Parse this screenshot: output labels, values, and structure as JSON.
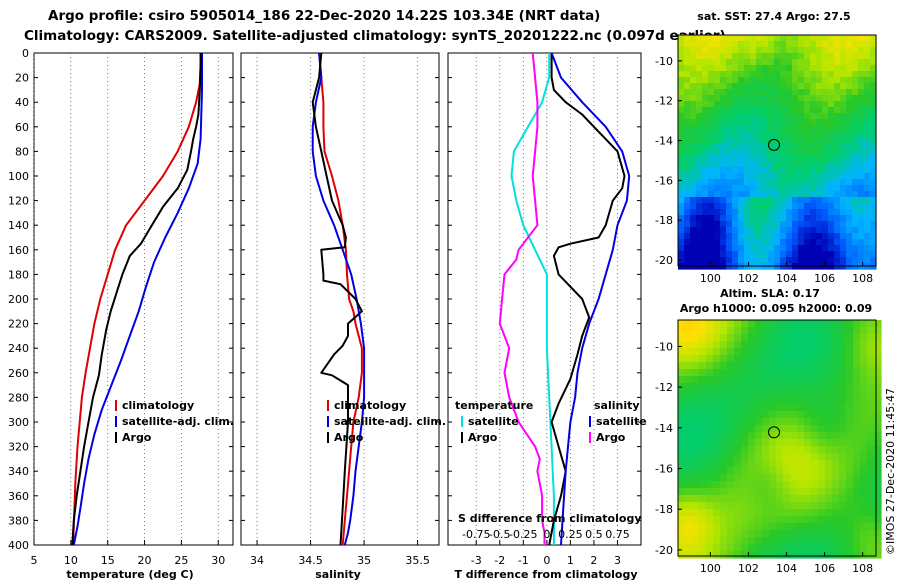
{
  "header": {
    "line1": "Argo profile: csiro 5905014_186 22-Dec-2020 14.22S 103.34E (NRT data)",
    "line2": "Climatology: CARS2009. Satellite-adjusted climatology: synTS_20201222.nc (0.097d earlier)"
  },
  "colors": {
    "climatology": "#e00000",
    "satellite": "#0000e6",
    "argo": "#000000",
    "temp_diff": "#00e0e0",
    "sal_diff": "#ff00ff"
  },
  "side": {
    "sst_title": "sat. SST: 27.4 Argo: 27.5",
    "sla_title1": "Altim. SLA: 0.17",
    "sla_title2": "Argo h1000: 0.095 h2000: 0.09",
    "map_xticks": [
      "100",
      "102",
      "104",
      "106",
      "108"
    ],
    "map_yticks": [
      "-10",
      "-12",
      "-14",
      "-16",
      "-18",
      "-20"
    ],
    "map_xvals": [
      100,
      102,
      104,
      106,
      108
    ],
    "map_yvals": [
      -10,
      -12,
      -14,
      -16,
      -18,
      -20
    ],
    "float_lon": 103.34,
    "float_lat": -14.22,
    "credit": "©IMOS 27-Dec-2020 11:45:47"
  },
  "chart_data": [
    {
      "type": "line",
      "id": "temperature",
      "xlabel": "temperature (deg C)",
      "ylabel": "depth",
      "xlim": [
        5,
        32
      ],
      "ylim": [
        0,
        400
      ],
      "xticks": [
        5,
        10,
        15,
        20,
        25,
        30
      ],
      "xtick_labels": [
        "5",
        "10",
        "15",
        "20",
        "25",
        "30"
      ],
      "yticks": [
        0,
        20,
        40,
        60,
        80,
        100,
        120,
        140,
        160,
        180,
        200,
        220,
        240,
        260,
        280,
        300,
        320,
        340,
        360,
        380,
        400
      ],
      "ytick_labels": [
        "0",
        "20",
        "40",
        "60",
        "80",
        "100",
        "120",
        "140",
        "160",
        "180",
        "200",
        "220",
        "240",
        "260",
        "280",
        "300",
        "320",
        "340",
        "360",
        "380",
        "400"
      ],
      "legend": {
        "position": "lower-right",
        "entries": [
          "climatology",
          "satellite-adj. clim.",
          "Argo"
        ]
      },
      "series": [
        {
          "name": "climatology",
          "color": "#e00000",
          "x": [
            27.6,
            27.6,
            27.5,
            27.0,
            26.0,
            24.5,
            22.5,
            20.0,
            17.5,
            16.0,
            15.0,
            14.0,
            13.2,
            12.6,
            12.0,
            11.5,
            11.2,
            10.9,
            10.6,
            10.3
          ],
          "y": [
            0,
            10,
            25,
            40,
            60,
            80,
            100,
            120,
            140,
            160,
            180,
            200,
            220,
            240,
            260,
            280,
            300,
            320,
            350,
            400
          ]
        },
        {
          "name": "satellite",
          "color": "#0000e6",
          "x": [
            27.8,
            27.8,
            27.8,
            27.7,
            27.6,
            27.2,
            26.0,
            24.5,
            22.8,
            21.3,
            20.2,
            19.2,
            18.0,
            16.8,
            15.5,
            14.2,
            13.2,
            12.4,
            11.8,
            11.3,
            10.9,
            10.4
          ],
          "y": [
            0,
            10,
            30,
            50,
            70,
            90,
            110,
            130,
            150,
            170,
            190,
            210,
            230,
            250,
            270,
            290,
            310,
            330,
            350,
            370,
            385,
            400
          ]
        },
        {
          "name": "Argo",
          "color": "#000000",
          "x": [
            27.6,
            27.6,
            27.5,
            27.3,
            27.0,
            26.6,
            26.3,
            25.8,
            24.5,
            22.5,
            21.0,
            19.5,
            18.0,
            17.0,
            16.2,
            15.4,
            14.8,
            14.2,
            13.8,
            13.0,
            12.4,
            11.8,
            11.3,
            10.8,
            10.4,
            10.2
          ],
          "y": [
            0,
            10,
            30,
            50,
            60,
            70,
            80,
            95,
            110,
            125,
            140,
            155,
            165,
            180,
            195,
            210,
            225,
            245,
            262,
            280,
            300,
            320,
            340,
            360,
            380,
            400
          ]
        }
      ]
    },
    {
      "type": "line",
      "id": "salinity",
      "xlabel": "salinity",
      "ylabel": "depth",
      "xlim": [
        33.85,
        35.7
      ],
      "ylim": [
        0,
        400
      ],
      "xticks": [
        34,
        34.5,
        35,
        35.5
      ],
      "xtick_labels": [
        "34",
        "34.5",
        "35",
        "35.5"
      ],
      "legend": {
        "position": "lower-right",
        "entries": [
          "climatology",
          "satellite-adj. clim.",
          "Argo"
        ]
      },
      "series": [
        {
          "name": "climatology",
          "color": "#e00000",
          "x": [
            34.58,
            34.6,
            34.62,
            34.62,
            34.63,
            34.7,
            34.76,
            34.8,
            34.83,
            34.84,
            34.86,
            34.9,
            34.92,
            34.98,
            34.98,
            34.95,
            34.9,
            34.88,
            34.86,
            34.84,
            34.82,
            34.8
          ],
          "y": [
            0,
            20,
            40,
            60,
            80,
            100,
            120,
            140,
            160,
            180,
            200,
            210,
            220,
            240,
            260,
            280,
            300,
            320,
            340,
            360,
            380,
            400
          ]
        },
        {
          "name": "satellite",
          "color": "#0000e6",
          "x": [
            34.58,
            34.6,
            34.55,
            34.52,
            34.52,
            34.55,
            34.62,
            34.72,
            34.8,
            34.88,
            34.93,
            34.97,
            35.0,
            35.0,
            35.0,
            34.98,
            34.95,
            34.92,
            34.9,
            34.87,
            34.85,
            34.82
          ],
          "y": [
            0,
            20,
            40,
            60,
            80,
            100,
            120,
            140,
            160,
            180,
            200,
            220,
            240,
            260,
            280,
            300,
            320,
            340,
            360,
            380,
            390,
            400
          ]
        },
        {
          "name": "Argo",
          "color": "#000000",
          "x": [
            34.6,
            34.58,
            34.52,
            34.55,
            34.6,
            34.65,
            34.7,
            34.75,
            34.8,
            34.83,
            34.82,
            34.6,
            34.62,
            34.62,
            34.78,
            34.92,
            34.98,
            34.85,
            34.85,
            34.8,
            34.72,
            34.6,
            34.7,
            34.85,
            34.85,
            34.82,
            34.8,
            34.78
          ],
          "y": [
            0,
            20,
            40,
            60,
            80,
            100,
            120,
            130,
            140,
            150,
            158,
            160,
            180,
            185,
            188,
            200,
            210,
            220,
            230,
            238,
            245,
            260,
            262,
            270,
            300,
            340,
            370,
            400
          ]
        }
      ]
    },
    {
      "type": "line",
      "id": "difference",
      "xlabel": "T difference from climatology",
      "xlabel_top": "S difference from climatology",
      "xlim": [
        -4.2,
        4.0
      ],
      "ylim": [
        0,
        400
      ],
      "xticks": [
        -3,
        -2,
        -1,
        0,
        1,
        2,
        3
      ],
      "xtick_labels": [
        "-3",
        "-2",
        "-1",
        "0",
        "1",
        "2",
        "3"
      ],
      "s_xticks": [
        "-0.75",
        "-0.5",
        "-0.25",
        "0",
        "0.25",
        "0.5",
        "0.75"
      ],
      "legend": {
        "position": "lower-center",
        "temperature_title": "temperature",
        "salinity_title": "salinity",
        "entries": [
          "satellite",
          "Argo",
          "satellite",
          "Argo"
        ]
      },
      "series": [
        {
          "name": "T satellite",
          "color": "#00e0e0",
          "x": [
            0.1,
            0.1,
            -0.2,
            -0.8,
            -1.4,
            -1.5,
            -1.3,
            -1.0,
            -0.5,
            0,
            0,
            0,
            0,
            0.05,
            0.1,
            0.15,
            0.2,
            0.25,
            0.3,
            0.3,
            0.3,
            0.3
          ],
          "y": [
            0,
            20,
            40,
            60,
            80,
            100,
            120,
            140,
            160,
            180,
            200,
            220,
            240,
            260,
            280,
            300,
            320,
            340,
            360,
            380,
            390,
            400
          ]
        },
        {
          "name": "T Argo",
          "color": "#000000",
          "x": [
            0.2,
            0.2,
            0.3,
            0.8,
            1.5,
            2.0,
            2.5,
            3.0,
            3.3,
            3.2,
            2.8,
            2.5,
            2.2,
            1.0,
            0.5,
            0.3,
            0.5,
            1.0,
            1.5,
            1.8,
            1.5,
            1.3,
            1.0,
            0.5,
            0.2,
            0.5,
            0.8,
            0.6,
            0.3,
            0.1
          ],
          "y": [
            0,
            20,
            30,
            40,
            50,
            60,
            70,
            80,
            100,
            110,
            120,
            140,
            150,
            155,
            158,
            165,
            180,
            190,
            200,
            215,
            230,
            245,
            265,
            285,
            300,
            320,
            340,
            360,
            380,
            400
          ]
        },
        {
          "name": "S satellite",
          "color": "#0000e6",
          "x": [
            0.2,
            0.6,
            1.5,
            2.5,
            3.2,
            3.5,
            3.4,
            3.0,
            2.8,
            2.5,
            2.2,
            1.8,
            1.5,
            1.3,
            1.2,
            1.0,
            0.9,
            0.8,
            0.7,
            0.6
          ],
          "y": [
            0,
            20,
            40,
            60,
            80,
            100,
            120,
            140,
            160,
            180,
            200,
            220,
            240,
            260,
            280,
            300,
            320,
            340,
            370,
            400
          ]
        },
        {
          "name": "S Argo",
          "color": "#ff00ff",
          "x": [
            -0.6,
            -0.5,
            -0.4,
            -0.4,
            -0.5,
            -0.6,
            -0.5,
            -0.4,
            -1.2,
            -1.3,
            -1.8,
            -1.9,
            -2.0,
            -1.6,
            -1.8,
            -1.6,
            -1.2,
            -0.5,
            -0.3,
            -0.4,
            -0.3,
            -0.2,
            -0.2,
            -0.1,
            -0.1
          ],
          "y": [
            0,
            20,
            40,
            60,
            80,
            100,
            120,
            140,
            160,
            168,
            180,
            200,
            220,
            240,
            260,
            280,
            300,
            320,
            330,
            340,
            350,
            360,
            380,
            390,
            400
          ]
        }
      ]
    }
  ]
}
